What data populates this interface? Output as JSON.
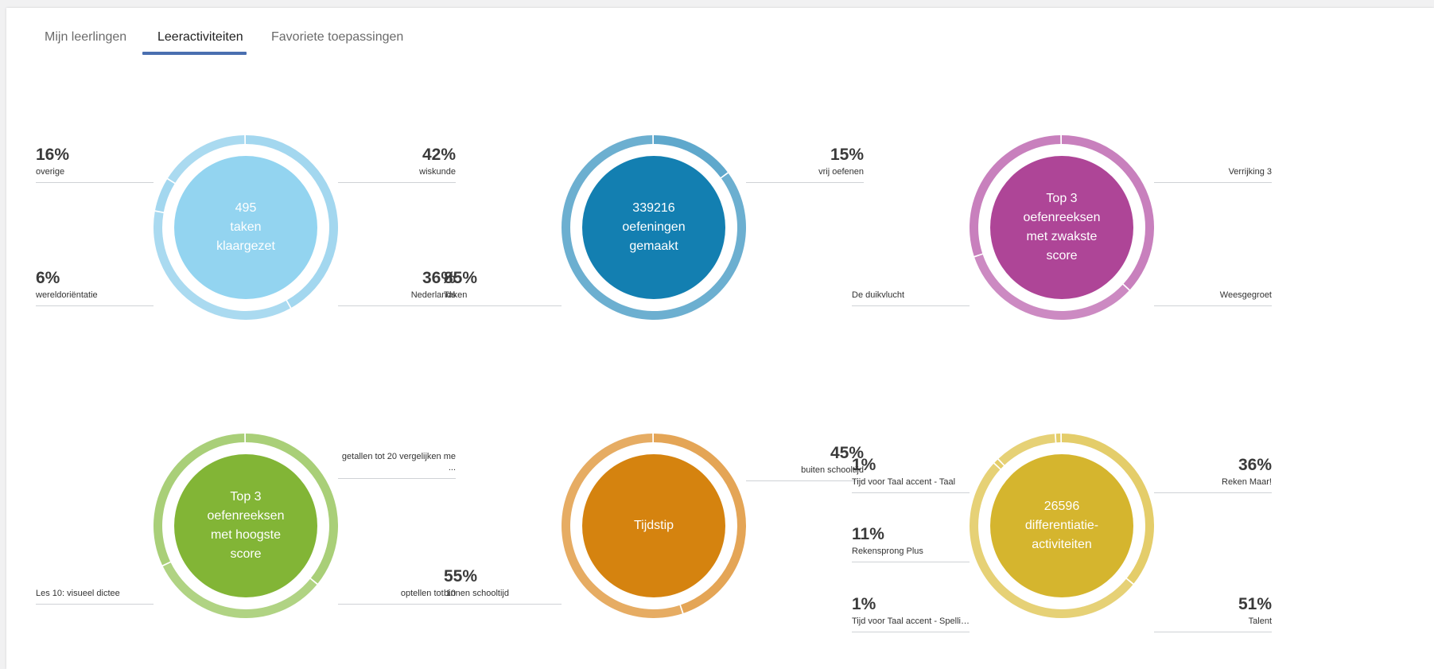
{
  "tabs": [
    {
      "label": "Mijn leerlingen",
      "active": false
    },
    {
      "label": "Leeractiviteiten",
      "active": true
    },
    {
      "label": "Favoriete toepassingen",
      "active": false
    }
  ],
  "panels": [
    {
      "center_lines": [
        "495",
        "taken",
        "klaargezet"
      ],
      "ring_color": "#a3d7ef",
      "center_color": "#93d4f0",
      "segments": [
        {
          "label": "wiskunde",
          "percent": "42%",
          "value": 42
        },
        {
          "label": "Nederlands",
          "percent": "36%",
          "value": 36
        },
        {
          "label": "wereldoriëntatie",
          "percent": "6%",
          "value": 6
        },
        {
          "label": "overige",
          "percent": "16%",
          "value": 16
        }
      ],
      "labels": {
        "top_left": 3,
        "top_right": 0,
        "bottom_left": 2,
        "bottom_right": 1
      }
    },
    {
      "center_lines": [
        "339216",
        "oefeningen",
        "gemaakt"
      ],
      "ring_color": "#5fa8cc",
      "center_color": "#137fb1",
      "segments": [
        {
          "label": "vrij oefenen",
          "percent": "15%",
          "value": 15
        },
        {
          "label": "Taken",
          "percent": "85%",
          "value": 85
        }
      ],
      "labels": {
        "top_right": 0,
        "bottom_left": 1
      }
    },
    {
      "center_lines": [
        "Top 3",
        "oefenreeksen",
        "met zwakste",
        "score"
      ],
      "ring_color": "#c880bd",
      "center_color": "#ae4597",
      "segments": [
        {
          "label": "Verrijking 3",
          "percent": "",
          "value": 37
        },
        {
          "label": "Weesgegroet",
          "percent": "",
          "value": 33
        },
        {
          "label": "De duikvlucht",
          "percent": "",
          "value": 30
        }
      ],
      "labels": {
        "top_right": 0,
        "bottom_right": 1,
        "bottom_left": 2
      }
    },
    {
      "center_lines": [
        "Top 3",
        "oefenreeksen",
        "met hoogste",
        "score"
      ],
      "ring_color": "#a9cf78",
      "center_color": "#82b536",
      "segments": [
        {
          "label": "getallen tot 20 vergelijken me ...",
          "percent": "",
          "value": 36
        },
        {
          "label": "optellen tot 10",
          "percent": "",
          "value": 32
        },
        {
          "label": "Les 10: visueel dictee",
          "percent": "",
          "value": 32
        }
      ],
      "labels": {
        "top_right": 0,
        "bottom_right": 1,
        "bottom_left": 2
      }
    },
    {
      "center_lines": [
        "Tijdstip"
      ],
      "ring_color": "#e4a556",
      "center_color": "#d5830f",
      "segments": [
        {
          "label": "buiten schooltijd",
          "percent": "45%",
          "value": 45
        },
        {
          "label": "binnen schooltijd",
          "percent": "55%",
          "value": 55
        }
      ],
      "labels": {
        "top_right": 0,
        "bottom_left": 1
      }
    },
    {
      "center_lines": [
        "26596",
        "differentiatie-",
        "activiteiten"
      ],
      "ring_color": "#e4cd6a",
      "center_color": "#d5b52e",
      "segments": [
        {
          "label": "Reken Maar!",
          "percent": "36%",
          "value": 36
        },
        {
          "label": "Talent",
          "percent": "51%",
          "value": 51
        },
        {
          "label": "Tijd voor Taal accent - Spelli ...",
          "percent": "1%",
          "value": 1
        },
        {
          "label": "Rekensprong Plus",
          "percent": "11%",
          "value": 11
        },
        {
          "label": "Tijd voor Taal accent - Taal",
          "percent": "1%",
          "value": 1
        }
      ],
      "labels": {
        "top_right": 0,
        "bottom_right": 1,
        "bottom_left": 2,
        "mid_left": 3,
        "top_left": 4
      }
    }
  ]
}
